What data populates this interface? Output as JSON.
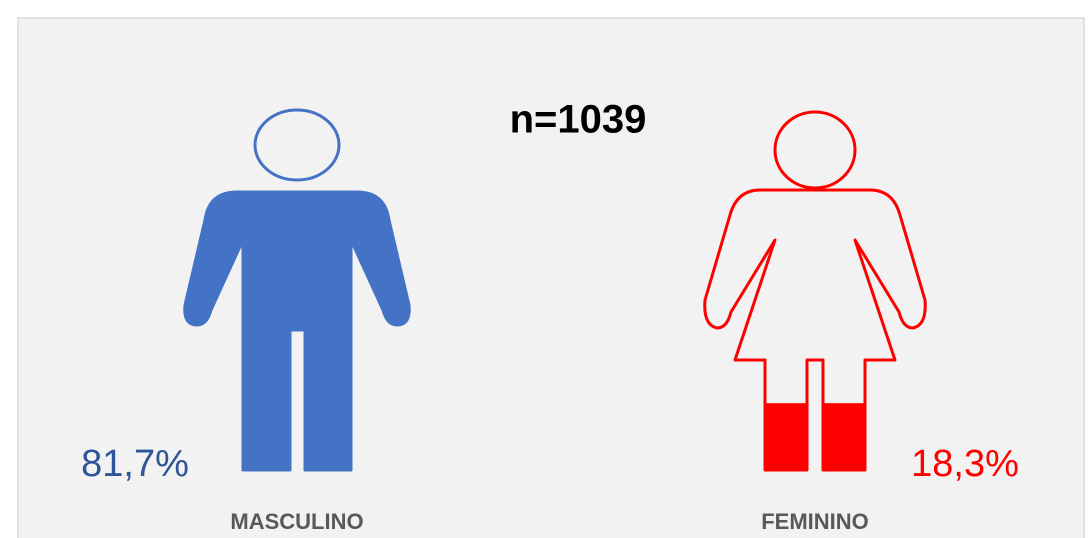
{
  "chart_data": {
    "type": "pictogram",
    "title": "n=1039",
    "ylim": [
      0,
      100
    ],
    "categories": [
      "MASCULINO",
      "FEMININO"
    ],
    "values": [
      81.7,
      18.3
    ],
    "value_labels": [
      "81,7%",
      "18,3%"
    ],
    "colors": [
      "#4472c4",
      "#ff0000"
    ]
  }
}
